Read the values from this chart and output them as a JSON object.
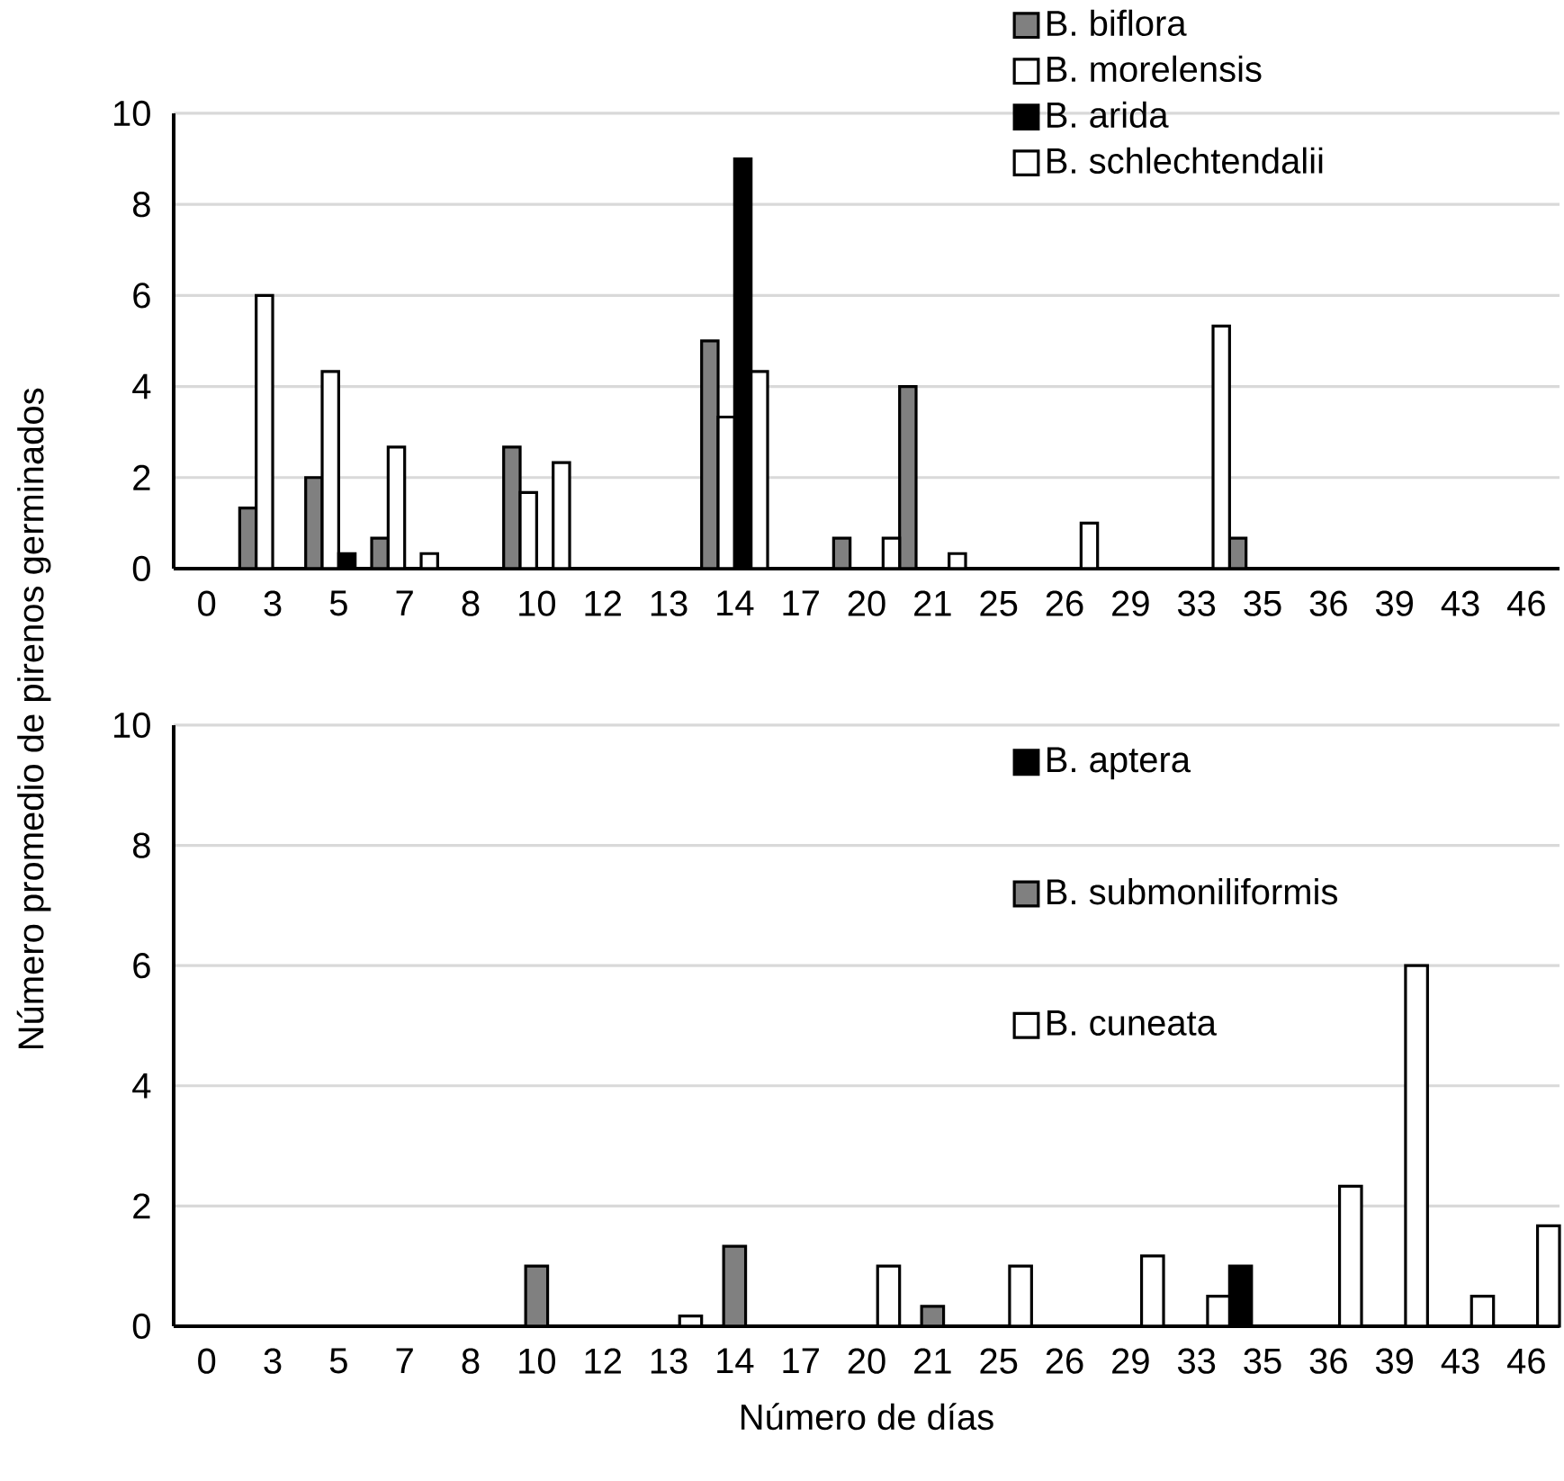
{
  "chart_data": [
    {
      "type": "bar",
      "categories": [
        "0",
        "3",
        "5",
        "7",
        "8",
        "10",
        "12",
        "13",
        "14",
        "17",
        "20",
        "21",
        "25",
        "26",
        "29",
        "33",
        "35",
        "36",
        "39",
        "43",
        "46"
      ],
      "ylim": [
        0,
        10
      ],
      "yticks": [
        0,
        2,
        4,
        6,
        8,
        10
      ],
      "grid": "y",
      "legend": "top right",
      "series": [
        {
          "name": "B. biflora",
          "color": "#808080",
          "values": [
            null,
            1.33,
            2,
            0.67,
            null,
            2.67,
            null,
            null,
            5,
            null,
            0.67,
            4,
            null,
            null,
            null,
            null,
            0.67,
            null,
            null,
            null,
            null
          ]
        },
        {
          "name": "B. morelensis",
          "color": "#ffffff",
          "values": [
            null,
            6,
            4.33,
            2.67,
            null,
            1.67,
            null,
            null,
            3.33,
            null,
            null,
            null,
            null,
            null,
            null,
            null,
            null,
            null,
            null,
            null,
            null
          ]
        },
        {
          "name": "B. arida",
          "color": "#000000",
          "values": [
            null,
            null,
            0.33,
            null,
            null,
            null,
            null,
            null,
            9,
            null,
            null,
            null,
            null,
            null,
            null,
            null,
            null,
            null,
            null,
            null,
            null
          ]
        },
        {
          "name": "B. schlechtendalii",
          "color": "#ffffff",
          "values": [
            null,
            null,
            null,
            0.33,
            null,
            2.33,
            null,
            null,
            4.33,
            null,
            0.67,
            0.33,
            null,
            1,
            null,
            5.33,
            null,
            null,
            null,
            null,
            null
          ]
        }
      ]
    },
    {
      "type": "bar",
      "categories": [
        "0",
        "3",
        "5",
        "7",
        "8",
        "10",
        "12",
        "13",
        "14",
        "17",
        "20",
        "21",
        "25",
        "26",
        "29",
        "33",
        "35",
        "36",
        "39",
        "43",
        "46"
      ],
      "ylim": [
        0,
        10
      ],
      "yticks": [
        0,
        2,
        4,
        6,
        8,
        10
      ],
      "grid": "y",
      "legend": "top right",
      "xlabel": "Número de días",
      "ylabel": "Número promedio de pirenos germinados",
      "series": [
        {
          "name": "B. aptera",
          "color": "#000000",
          "values": [
            null,
            null,
            null,
            null,
            null,
            null,
            null,
            null,
            null,
            null,
            null,
            null,
            null,
            null,
            null,
            null,
            1,
            null,
            null,
            null,
            null
          ]
        },
        {
          "name": "B. submoniliformis",
          "color": "#808080",
          "values": [
            null,
            null,
            null,
            null,
            null,
            1,
            null,
            null,
            1.33,
            null,
            null,
            0.33,
            null,
            null,
            null,
            null,
            null,
            null,
            null,
            null,
            null
          ]
        },
        {
          "name": "B. cuneata",
          "color": "#ffffff",
          "values": [
            null,
            null,
            null,
            null,
            null,
            null,
            null,
            0.17,
            null,
            null,
            1,
            null,
            1,
            null,
            1.17,
            0.5,
            null,
            2.33,
            6,
            0.5,
            1.67
          ]
        }
      ]
    }
  ]
}
